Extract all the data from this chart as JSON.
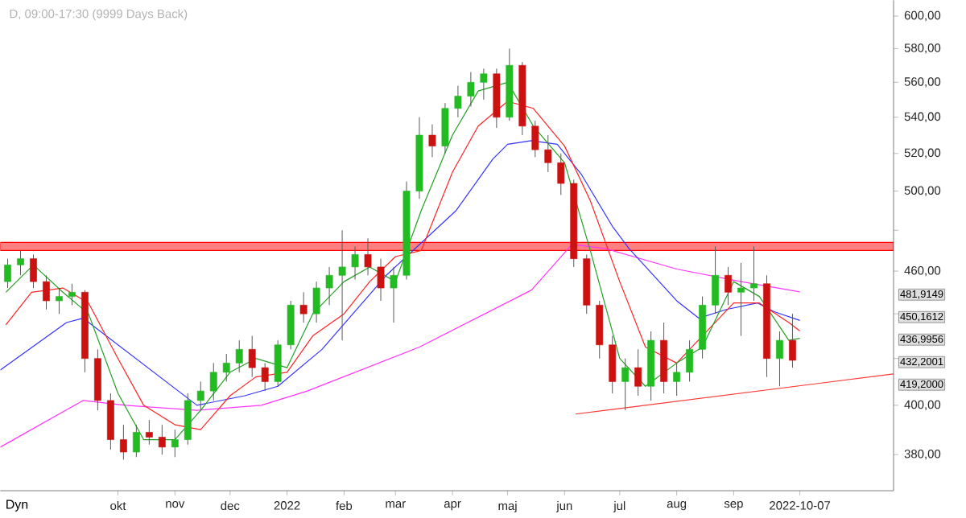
{
  "chart_data": {
    "type": "candlestick",
    "title": "D, 09:00-17:30 (9999 Days Back)",
    "log": "y",
    "xlim": [
      "2021-07-29",
      "2022-11-27"
    ],
    "ylim": [
      366,
      610
    ],
    "xticks": [
      {
        "value": "2021-10-01",
        "label": "okt"
      },
      {
        "value": "2021-11-01",
        "label": "nov"
      },
      {
        "value": "2021-12-01",
        "label": "dec"
      },
      {
        "value": "2022-01-01",
        "label": "2022"
      },
      {
        "value": "2022-02-01",
        "label": "feb"
      },
      {
        "value": "2022-03-01",
        "label": "mar"
      },
      {
        "value": "2022-04-01",
        "label": "apr"
      },
      {
        "value": "2022-05-01",
        "label": "maj"
      },
      {
        "value": "2022-06-01",
        "label": "jun"
      },
      {
        "value": "2022-07-01",
        "label": "jul"
      },
      {
        "value": "2022-08-01",
        "label": "aug"
      },
      {
        "value": "2022-09-01",
        "label": "sep"
      },
      {
        "value": "2022-10-07",
        "label": "2022-10-07"
      }
    ],
    "yticks": [
      {
        "value": 380,
        "label": "380,00"
      },
      {
        "value": 400,
        "label": "400,00"
      },
      {
        "value": 420,
        "label": null
      },
      {
        "value": 440,
        "label": null
      },
      {
        "value": 460,
        "label": "460,00"
      },
      {
        "value": 480,
        "label": null
      },
      {
        "value": 500,
        "label": "500,00"
      },
      {
        "value": 520,
        "label": "520,00"
      },
      {
        "value": 540,
        "label": "540,00"
      },
      {
        "value": 560,
        "label": "560,00"
      },
      {
        "value": 580,
        "label": "580,00"
      },
      {
        "value": 600,
        "label": "600,00"
      }
    ],
    "bands": [
      {
        "axis": "y",
        "from": 470,
        "to": 474,
        "color": "#ff8080"
      }
    ],
    "annotations": [
      "Dyn",
      "481,9149",
      "450,1612",
      "436,9956",
      "432,2001",
      "419,2000"
    ],
    "series": [
      {
        "x": [
          "2021-08-02",
          "2021-08-09",
          "2021-08-16",
          "2021-08-23",
          "2021-08-30",
          "2021-09-06",
          "2021-09-13",
          "2021-09-20",
          "2021-09-27",
          "2021-10-04",
          "2021-10-11",
          "2021-10-18",
          "2021-10-25",
          "2021-11-01",
          "2021-11-08",
          "2021-11-15",
          "2021-11-22",
          "2021-11-29",
          "2021-12-06",
          "2021-12-13",
          "2021-12-20",
          "2021-12-27",
          "2022-01-03",
          "2022-01-10",
          "2022-01-17",
          "2022-01-24",
          "2022-01-31",
          "2022-02-07",
          "2022-02-14",
          "2022-02-21",
          "2022-02-28",
          "2022-03-07",
          "2022-03-14",
          "2022-03-21",
          "2022-03-28",
          "2022-04-04",
          "2022-04-11",
          "2022-04-18",
          "2022-04-25",
          "2022-05-02",
          "2022-05-09",
          "2022-05-16",
          "2022-05-23",
          "2022-05-30",
          "2022-06-06",
          "2022-06-13",
          "2022-06-20",
          "2022-06-27",
          "2022-07-04",
          "2022-07-11",
          "2022-07-18",
          "2022-07-25",
          "2022-08-01",
          "2022-08-08",
          "2022-08-15",
          "2022-08-22",
          "2022-08-29",
          "2022-09-05",
          "2022-09-12",
          "2022-09-19",
          "2022-09-26",
          "2022-10-03"
        ],
        "ohlc": [
          [
            455,
            466,
            452,
            463
          ],
          [
            463,
            470,
            458,
            466
          ],
          [
            466,
            468,
            452,
            455
          ],
          [
            455,
            458,
            442,
            446
          ],
          [
            446,
            452,
            440,
            448
          ],
          [
            448,
            454,
            444,
            450
          ],
          [
            450,
            451,
            414,
            420
          ],
          [
            420,
            424,
            398,
            402
          ],
          [
            402,
            405,
            382,
            386
          ],
          [
            386,
            392,
            378,
            381
          ],
          [
            381,
            392,
            379,
            389
          ],
          [
            389,
            394,
            384,
            387
          ],
          [
            387,
            392,
            380,
            383
          ],
          [
            383,
            390,
            379,
            386
          ],
          [
            386,
            405,
            384,
            402
          ],
          [
            402,
            410,
            398,
            406
          ],
          [
            406,
            418,
            402,
            414
          ],
          [
            414,
            422,
            410,
            418
          ],
          [
            418,
            428,
            414,
            424
          ],
          [
            424,
            430,
            412,
            416
          ],
          [
            416,
            418,
            406,
            410
          ],
          [
            410,
            428,
            408,
            426
          ],
          [
            426,
            446,
            424,
            444
          ],
          [
            444,
            450,
            436,
            440
          ],
          [
            440,
            455,
            436,
            452
          ],
          [
            452,
            462,
            444,
            458
          ],
          [
            458,
            480,
            428,
            462
          ],
          [
            462,
            472,
            456,
            468
          ],
          [
            468,
            476,
            458,
            462
          ],
          [
            462,
            466,
            446,
            452
          ],
          [
            452,
            462,
            436,
            458
          ],
          [
            458,
            505,
            456,
            500
          ],
          [
            500,
            540,
            496,
            530
          ],
          [
            530,
            536,
            518,
            524
          ],
          [
            524,
            548,
            520,
            545
          ],
          [
            545,
            558,
            540,
            552
          ],
          [
            552,
            566,
            546,
            560
          ],
          [
            560,
            568,
            550,
            565
          ],
          [
            565,
            568,
            534,
            540
          ],
          [
            540,
            580,
            538,
            570
          ],
          [
            570,
            572,
            530,
            535
          ],
          [
            535,
            538,
            518,
            522
          ],
          [
            522,
            530,
            510,
            515
          ],
          [
            515,
            520,
            498,
            504
          ],
          [
            504,
            506,
            462,
            466
          ],
          [
            466,
            468,
            440,
            444
          ],
          [
            444,
            446,
            420,
            426
          ],
          [
            426,
            430,
            405,
            410
          ],
          [
            410,
            420,
            398,
            416
          ],
          [
            416,
            424,
            404,
            408
          ],
          [
            408,
            432,
            402,
            428
          ],
          [
            428,
            436,
            405,
            410
          ],
          [
            410,
            418,
            404,
            414
          ],
          [
            414,
            428,
            410,
            424
          ],
          [
            424,
            448,
            420,
            444
          ],
          [
            444,
            472,
            440,
            458
          ],
          [
            458,
            462,
            444,
            450
          ],
          [
            450,
            464,
            430,
            452
          ],
          [
            452,
            472,
            446,
            454
          ],
          [
            454,
            458,
            412,
            420
          ],
          [
            420,
            432,
            408,
            428
          ],
          [
            428,
            440,
            416,
            419.2
          ]
        ]
      },
      {
        "type": "line",
        "color": "#ff33ff",
        "x": [
          "2021-07-29",
          "2021-09-12",
          "2021-10-05",
          "2021-11-13",
          "2021-12-18",
          "2022-01-12",
          "2022-03-14",
          "2022-05-14",
          "2022-06-05",
          "2022-06-23",
          "2022-08-01",
          "2022-09-05",
          "2022-10-07"
        ],
        "values": [
          383,
          402,
          400,
          398,
          400,
          406,
          425,
          451,
          473,
          471,
          461,
          455,
          450.16
        ]
      },
      {
        "type": "line",
        "color": "#3333ff",
        "x": [
          "2021-07-29",
          "2021-09-03",
          "2021-09-12",
          "2021-11-13",
          "2021-12-09",
          "2021-12-27",
          "2022-01-20",
          "2022-02-24",
          "2022-04-03",
          "2022-04-23",
          "2022-05-01",
          "2022-05-14",
          "2022-05-28",
          "2022-06-10",
          "2022-06-27",
          "2022-07-06",
          "2022-08-01",
          "2022-08-13",
          "2022-08-28",
          "2022-09-14",
          "2022-09-23",
          "2022-10-07"
        ],
        "values": [
          415,
          436,
          438,
          400,
          404,
          408,
          424,
          458,
          490,
          517,
          525,
          527,
          525,
          509,
          482,
          471,
          446,
          438,
          442,
          445,
          441,
          437
        ]
      },
      {
        "type": "line",
        "color": "#ff2222",
        "x": [
          "2021-08-01",
          "2021-08-15",
          "2021-09-01",
          "2021-09-15",
          "2021-10-01",
          "2021-10-15",
          "2021-11-01",
          "2021-11-15",
          "2021-12-01",
          "2021-12-15",
          "2022-01-01",
          "2022-01-15",
          "2022-02-01",
          "2022-02-15",
          "2022-03-01",
          "2022-03-15",
          "2022-04-01",
          "2022-04-15",
          "2022-05-01",
          "2022-05-15",
          "2022-06-01",
          "2022-06-15",
          "2022-07-01",
          "2022-07-15",
          "2022-08-01",
          "2022-08-15",
          "2022-09-01",
          "2022-09-15",
          "2022-10-01",
          "2022-10-07"
        ],
        "values": [
          435,
          450,
          452,
          445,
          420,
          400,
          392,
          390,
          404,
          412,
          414,
          430,
          440,
          455,
          467,
          470,
          510,
          535,
          549,
          545,
          524,
          495,
          455,
          425,
          418,
          430,
          445,
          445,
          436,
          432.2
        ]
      },
      {
        "type": "line",
        "color": "#22a022",
        "x": [
          "2021-08-01",
          "2021-08-16",
          "2021-09-01",
          "2021-09-15",
          "2021-10-01",
          "2021-10-15",
          "2021-11-01",
          "2021-11-15",
          "2021-12-01",
          "2021-12-15",
          "2022-01-01",
          "2022-01-15",
          "2022-02-01",
          "2022-02-15",
          "2022-03-01",
          "2022-03-15",
          "2022-04-01",
          "2022-04-15",
          "2022-05-01",
          "2022-05-15",
          "2022-06-01",
          "2022-06-15",
          "2022-07-01",
          "2022-07-15",
          "2022-08-01",
          "2022-08-15",
          "2022-09-01",
          "2022-09-15",
          "2022-10-01",
          "2022-10-07"
        ],
        "values": [
          450,
          463,
          450,
          440,
          405,
          386,
          386,
          398,
          414,
          420,
          416,
          440,
          455,
          462,
          455,
          490,
          530,
          555,
          560,
          535,
          515,
          470,
          420,
          408,
          418,
          425,
          455,
          448,
          428,
          428.9
        ]
      },
      {
        "type": "line",
        "color": "#ff3333",
        "x": [
          "2022-06-07",
          "2022-11-27"
        ],
        "values": [
          396.4,
          413.3
        ]
      }
    ]
  }
}
